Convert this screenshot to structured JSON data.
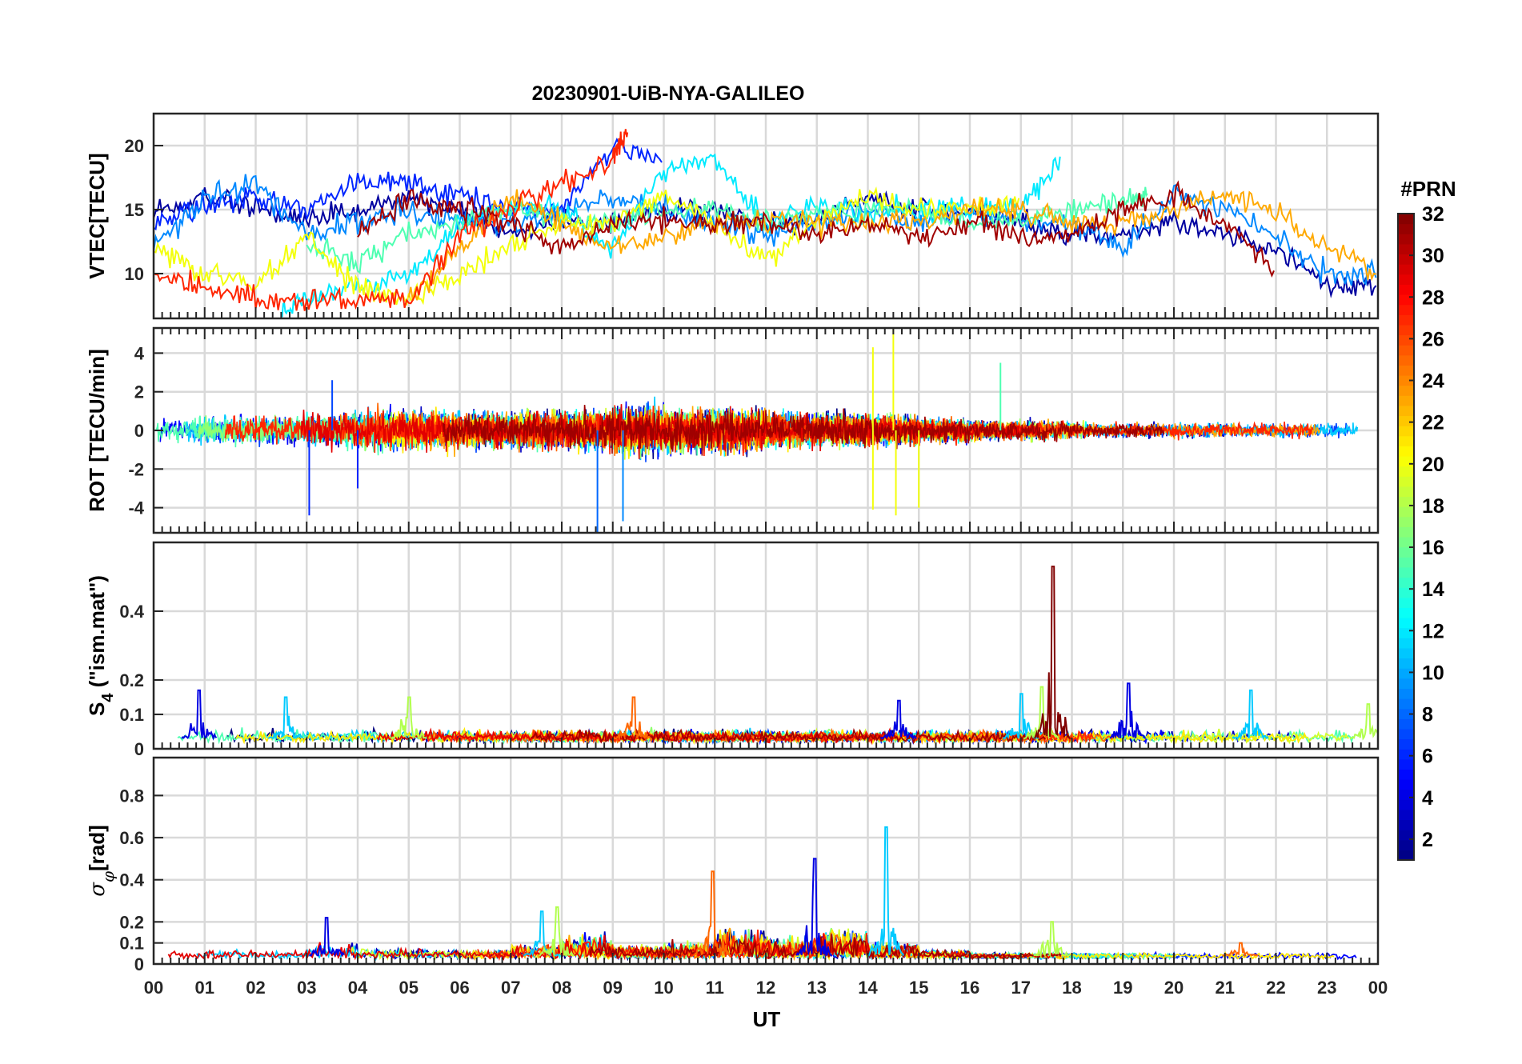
{
  "title": "20230901-UiB-NYA-GALILEO",
  "xlabel": "UT",
  "x_ticks": [
    "00",
    "01",
    "02",
    "03",
    "04",
    "05",
    "06",
    "07",
    "08",
    "09",
    "10",
    "11",
    "12",
    "13",
    "14",
    "15",
    "16",
    "17",
    "18",
    "19",
    "20",
    "21",
    "22",
    "23",
    "00"
  ],
  "colorbar": {
    "title": "#PRN",
    "colormap": "jet",
    "range": [
      1,
      32
    ],
    "ticks": [
      2,
      4,
      6,
      8,
      10,
      12,
      14,
      16,
      18,
      20,
      22,
      24,
      26,
      28,
      30,
      32
    ]
  },
  "chart_data": [
    {
      "type": "line",
      "id": "vtec",
      "ylabel": "VTEC[TECU]",
      "xlim": [
        0,
        24
      ],
      "ylim": [
        6.5,
        22.5
      ],
      "yticks": [
        10,
        15,
        20
      ],
      "grid": true,
      "series": [
        {
          "prn": 2,
          "x": [
            0,
            1,
            2,
            3,
            4,
            5,
            6,
            7,
            8,
            9,
            10,
            11,
            12,
            13,
            14,
            15,
            16,
            17,
            18,
            19,
            20,
            21,
            22,
            23,
            24
          ],
          "y": [
            15,
            16,
            15,
            14,
            15,
            16,
            15,
            13,
            14,
            14,
            15,
            15,
            14,
            14,
            16,
            15,
            15,
            14,
            13,
            13,
            14,
            13,
            12,
            9,
            9
          ]
        },
        {
          "prn": 6,
          "x": [
            0,
            1,
            2,
            3,
            4,
            5,
            6,
            7,
            8,
            9,
            10
          ],
          "y": [
            14,
            15,
            16,
            15,
            17,
            17,
            16,
            15,
            15,
            20,
            19
          ]
        },
        {
          "prn": 9,
          "x": [
            0,
            1,
            2,
            3,
            4,
            5,
            6,
            7,
            8,
            9,
            10,
            11,
            12,
            13,
            14,
            15,
            16,
            17,
            18,
            19,
            20,
            21,
            22,
            23,
            24
          ],
          "y": [
            12,
            16,
            17,
            13,
            14,
            15,
            14,
            14,
            15,
            16,
            15,
            14,
            13,
            14,
            15,
            14,
            15,
            14,
            14,
            12,
            16,
            15,
            13,
            10,
            10
          ]
        },
        {
          "prn": 12,
          "x": [
            2.5,
            3,
            4,
            5,
            6,
            7,
            8,
            9,
            10,
            11,
            12,
            13,
            14,
            15,
            16,
            17,
            17.8
          ],
          "y": [
            7,
            8,
            9,
            10,
            14,
            15,
            15,
            12,
            18,
            19,
            14,
            15,
            15,
            15,
            15,
            15,
            19
          ]
        },
        {
          "prn": 15,
          "x": [
            3,
            4,
            5,
            6,
            7,
            8,
            9,
            10,
            11,
            12,
            13,
            14,
            15,
            16,
            17,
            18,
            19,
            19.5
          ],
          "y": [
            12,
            11,
            13,
            14,
            15,
            14,
            14,
            15,
            15,
            14,
            15,
            15,
            15,
            14,
            14,
            15,
            16,
            16
          ]
        },
        {
          "prn": 20,
          "x": [
            0,
            1,
            2,
            3,
            4,
            5,
            6,
            7,
            8,
            9,
            10,
            11,
            12,
            13,
            14,
            15,
            16,
            17
          ],
          "y": [
            12,
            10,
            9,
            13,
            9,
            8,
            10,
            12,
            14,
            14,
            16,
            14,
            11,
            14,
            16,
            15,
            15,
            15
          ]
        },
        {
          "prn": 23,
          "x": [
            5,
            6,
            7,
            8,
            9,
            10,
            11,
            12,
            13,
            14,
            15,
            16,
            17,
            18,
            19,
            20,
            21,
            22,
            23,
            24
          ],
          "y": [
            8,
            12,
            16,
            14,
            12,
            13,
            14,
            14,
            14,
            14,
            14,
            15,
            15,
            14,
            14,
            15,
            16,
            15,
            12,
            10
          ]
        },
        {
          "prn": 27,
          "x": [
            0,
            1,
            2,
            3,
            4,
            5,
            6,
            7,
            8,
            9,
            9.3
          ],
          "y": [
            10,
            9,
            8,
            8,
            8,
            8,
            13,
            15,
            17,
            19,
            21
          ]
        },
        {
          "prn": 31,
          "x": [
            4,
            5,
            6,
            7,
            8,
            9,
            10,
            11,
            12,
            13,
            14,
            15,
            16,
            17,
            18,
            19,
            20,
            21,
            22
          ],
          "y": [
            13,
            16,
            15,
            14,
            12,
            14,
            14,
            14,
            14,
            13,
            14,
            13,
            14,
            13,
            13,
            15,
            16,
            14,
            10
          ]
        }
      ]
    },
    {
      "type": "line",
      "id": "rot",
      "ylabel": "ROT [TECU/min]",
      "xlim": [
        0,
        24
      ],
      "ylim": [
        -5.3,
        5.3
      ],
      "yticks": [
        -4,
        -2,
        0,
        2,
        4
      ],
      "grid": true,
      "noise_amplitude_by_hour": [
        1.0,
        1.2,
        1.2,
        1.4,
        1.6,
        1.6,
        1.4,
        1.6,
        1.6,
        2.0,
        1.8,
        1.8,
        1.4,
        1.4,
        1.2,
        1.0,
        0.8,
        0.8,
        0.6,
        0.6,
        0.6,
        0.6,
        0.6,
        0.6
      ],
      "spikes": [
        {
          "x": 3.05,
          "y": -4.4
        },
        {
          "x": 3.5,
          "y": 2.6
        },
        {
          "x": 8.7,
          "y": -5.3
        },
        {
          "x": 9.2,
          "y": -4.7
        },
        {
          "x": 14.1,
          "y": -4.1
        },
        {
          "x": 14.1,
          "y": 4.3
        },
        {
          "x": 14.5,
          "y": 5.3
        },
        {
          "x": 14.55,
          "y": -4.4
        },
        {
          "x": 15.0,
          "y": -4.0
        },
        {
          "x": 16.6,
          "y": 3.5
        },
        {
          "x": 4.0,
          "y": -3.0
        }
      ]
    },
    {
      "type": "line",
      "id": "s4",
      "ylabel": "S₄ (\"ism.mat\")",
      "ylabel_main": "S",
      "ylabel_sub": "4",
      "ylabel_rest": " (\"ism.mat\")",
      "xlim": [
        0,
        24
      ],
      "ylim": [
        0,
        0.6
      ],
      "yticks": [
        0,
        0.1,
        0.2,
        0.4
      ],
      "grid": true,
      "baseline": 0.03,
      "noise_amplitude": 0.04,
      "bursts": [
        {
          "x": 0.9,
          "y": 0.17
        },
        {
          "x": 2.6,
          "y": 0.15
        },
        {
          "x": 5.0,
          "y": 0.15
        },
        {
          "x": 9.4,
          "y": 0.15
        },
        {
          "x": 14.6,
          "y": 0.14
        },
        {
          "x": 17.0,
          "y": 0.16
        },
        {
          "x": 17.4,
          "y": 0.18
        },
        {
          "x": 17.62,
          "y": 0.53
        },
        {
          "x": 19.1,
          "y": 0.19
        },
        {
          "x": 21.5,
          "y": 0.17
        },
        {
          "x": 23.8,
          "y": 0.13
        }
      ]
    },
    {
      "type": "line",
      "id": "sigma_phi",
      "ylabel": "σφ[rad]",
      "ylabel_main": "σ",
      "ylabel_sub": "φ",
      "ylabel_rest": "[rad]",
      "xlim": [
        0,
        24
      ],
      "ylim": [
        0,
        0.98
      ],
      "yticks": [
        0,
        0.1,
        0.2,
        0.4,
        0.6,
        0.8
      ],
      "grid": true,
      "baseline": 0.04,
      "noise_amplitude_by_hour": [
        0.04,
        0.06,
        0.04,
        0.1,
        0.06,
        0.05,
        0.05,
        0.1,
        0.15,
        0.08,
        0.1,
        0.2,
        0.15,
        0.2,
        0.1,
        0.05,
        0.02,
        0.02,
        0.02,
        0.02,
        0.02,
        0.02,
        0.02,
        0.02
      ],
      "bursts": [
        {
          "x": 3.4,
          "y": 0.22
        },
        {
          "x": 7.6,
          "y": 0.25
        },
        {
          "x": 7.9,
          "y": 0.27
        },
        {
          "x": 10.95,
          "y": 0.44
        },
        {
          "x": 12.95,
          "y": 0.5
        },
        {
          "x": 14.35,
          "y": 0.65
        },
        {
          "x": 17.6,
          "y": 0.2
        },
        {
          "x": 21.3,
          "y": 0.1
        }
      ]
    }
  ]
}
